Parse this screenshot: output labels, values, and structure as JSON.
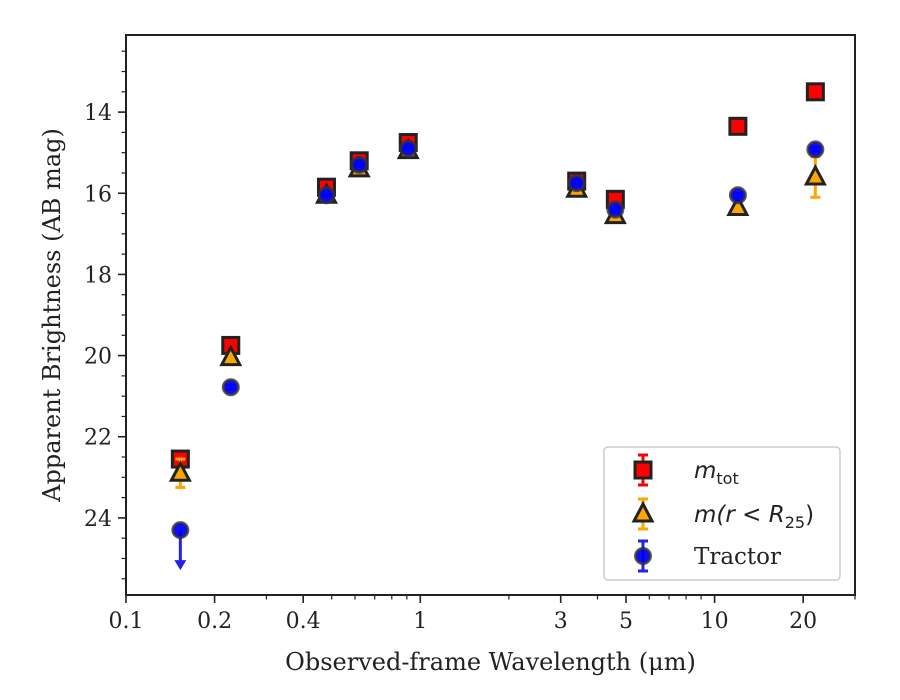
{
  "chart_data": {
    "type": "scatter",
    "xlabel": "Observed-frame Wavelength (μm)",
    "ylabel": "Apparent Brightness (AB mag)",
    "x_scale": "log",
    "xlim": [
      0.1,
      30
    ],
    "ylim": [
      25.9,
      12.1
    ],
    "y_inverted": true,
    "x_ticks": [
      0.1,
      0.2,
      0.4,
      1,
      3,
      5,
      10,
      20
    ],
    "x_tick_labels": [
      "0.1",
      "0.2",
      "0.4",
      "1",
      "3",
      "5",
      "10",
      "20"
    ],
    "y_ticks": [
      14,
      16,
      18,
      20,
      22,
      24
    ],
    "y_tick_labels": [
      "14",
      "16",
      "18",
      "20",
      "22",
      "24"
    ],
    "grid": false,
    "legend_position": "lower-right",
    "series": [
      {
        "name": "m_tot",
        "legend_label": {
          "base": "m",
          "sub": "tot"
        },
        "marker": "square",
        "color": "#ff0000",
        "edge_color": "#222222",
        "points": [
          {
            "x": 0.153,
            "y": 22.55,
            "err": 0.08
          },
          {
            "x": 0.227,
            "y": 19.75,
            "err": 0.05
          },
          {
            "x": 0.48,
            "y": 15.85,
            "err": 0.03
          },
          {
            "x": 0.62,
            "y": 15.2,
            "err": 0.03
          },
          {
            "x": 0.91,
            "y": 14.75,
            "err": 0.03
          },
          {
            "x": 3.4,
            "y": 15.7,
            "err": 0.03
          },
          {
            "x": 4.6,
            "y": 16.15,
            "err": 0.03
          },
          {
            "x": 12.0,
            "y": 14.35,
            "err": 0.03
          },
          {
            "x": 22.0,
            "y": 13.5,
            "err": 0.03
          }
        ]
      },
      {
        "name": "m(r < R_25)",
        "legend_label": {
          "base": "m(r < R",
          "sub": "25",
          "tail": ")"
        },
        "marker": "triangle",
        "color": "#ffa500",
        "edge_color": "#222222",
        "points": [
          {
            "x": 0.153,
            "y": 22.9,
            "err": 0.35
          },
          {
            "x": 0.227,
            "y": 20.05,
            "err": 0.08
          },
          {
            "x": 0.48,
            "y": 16.05,
            "err": 0.03
          },
          {
            "x": 0.62,
            "y": 15.4,
            "err": 0.03
          },
          {
            "x": 0.91,
            "y": 14.95,
            "err": 0.03
          },
          {
            "x": 3.4,
            "y": 15.9,
            "err": 0.03
          },
          {
            "x": 4.6,
            "y": 16.55,
            "err": 0.03
          },
          {
            "x": 12.0,
            "y": 16.35,
            "err": 0.05
          },
          {
            "x": 22.0,
            "y": 15.6,
            "err": 0.5
          }
        ]
      },
      {
        "name": "Tractor",
        "marker": "circle",
        "color": "#0000ff",
        "edge_color": "#333333",
        "points": [
          {
            "x": 0.153,
            "y": 24.3,
            "upper_limit": true
          },
          {
            "x": 0.227,
            "y": 20.78,
            "err": 0.05
          },
          {
            "x": 0.48,
            "y": 16.05,
            "err": 0.03
          },
          {
            "x": 0.62,
            "y": 15.3,
            "err": 0.03
          },
          {
            "x": 0.91,
            "y": 14.9,
            "err": 0.03
          },
          {
            "x": 3.4,
            "y": 15.75,
            "err": 0.03
          },
          {
            "x": 4.6,
            "y": 16.4,
            "err": 0.03
          },
          {
            "x": 12.0,
            "y": 16.05,
            "err": 0.05
          },
          {
            "x": 22.0,
            "y": 14.92,
            "err": 0.05
          }
        ]
      }
    ]
  }
}
